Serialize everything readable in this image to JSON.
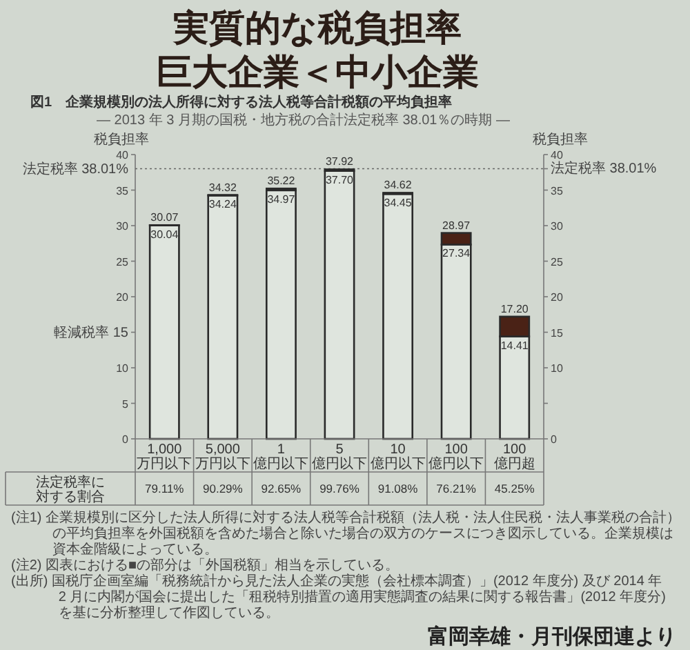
{
  "chart_data": {
    "type": "bar",
    "title": "実質的な税負担率",
    "subtitle": "巨大企業＜中小企業",
    "ylabel": "税負担率",
    "y2label": "税負担率",
    "categories": [
      "1,000 万円以下",
      "5,000 万円以下",
      "1 億円以下",
      "5 億円以下",
      "10 億円以下",
      "100 億円以下",
      "100 億円超"
    ],
    "stacked": true,
    "series": [
      {
        "color": "#dfe5de",
        "values": [
          30.04,
          34.24,
          34.97,
          37.7,
          34.45,
          27.34,
          14.41
        ],
        "value_labels": [
          "30.04",
          "34.24",
          "34.97",
          "37.70",
          "34.45",
          "27.34",
          "14.41"
        ]
      },
      {
        "color": "#4a2216",
        "values": [
          0.03,
          0.08,
          0.25,
          0.22,
          0.17,
          1.63,
          2.79
        ]
      }
    ],
    "totals": [
      "30.07",
      "34.32",
      "35.22",
      "37.92",
      "34.62",
      "28.97",
      "17.20"
    ],
    "ylim": [
      0,
      40
    ],
    "yticks": [
      0,
      5,
      10,
      {
        "value": 15,
        "label": "軽減税率 15"
      },
      20,
      25,
      30,
      35,
      40
    ],
    "y2lim": [
      0,
      40
    ],
    "y2ticks": [
      0,
      {
        "value": 5,
        "label": null
      },
      10,
      15,
      20,
      25,
      30,
      35,
      {
        "value": 38.01,
        "label": "法定税率 38.01%"
      },
      40
    ],
    "ref_lines": [
      {
        "axis": "y",
        "value": 38.01,
        "label": "法定税率 38.01%",
        "line_style": "dotted"
      }
    ],
    "annotations": [
      "図1　企業規模別の法人所得に対する法人税等合計税額の平均負担率",
      "― 2013 年 3 月期の国税・地方税の合計法定税率 38.01％の時期 ―",
      "法定税率に対する割合",
      "79.11%",
      "90.29%",
      "92.65%",
      "99.76%",
      "91.08%",
      "76.21%",
      "45.25%",
      "(注1) 企業規模別に区分した法人所得に対する法人税等合計税額（法人税・法人住民税・法人事業税の合計）の平均負担率を外国税額を含めた場合と除いた場合の双方のケースにつき図示している。企業規模は資本金階級によっている。",
      "(注2) 図表における■の部分は「外国税額」相当を示している。",
      "(出所) 国税庁企画室編「税務統計から見た法人企業の実態（会社標本調査）」(2012 年度分) 及び 2014 年 2 月に内閣が国会に提出した「租税特別措置の適用実態調査の結果に関する報告書」(2012 年度分) を基に分析整理して作図している。",
      "富岡幸雄・月刊保団連より"
    ]
  }
}
